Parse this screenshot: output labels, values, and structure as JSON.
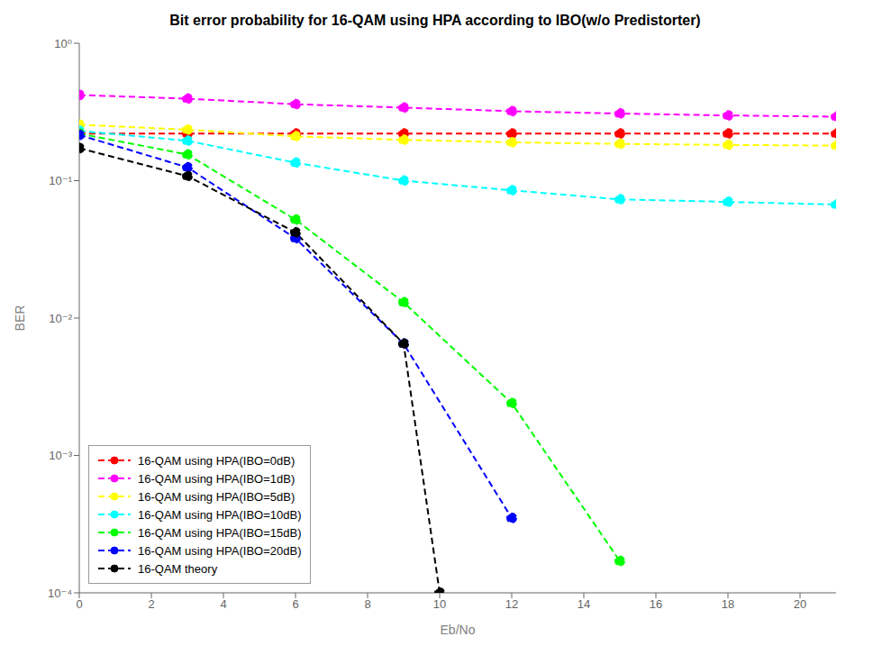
{
  "chart_data": {
    "type": "line",
    "title": "Bit error probability for 16-QAM using HPA according to IBO(w/o Predistorter)",
    "x_label": "Eb/No",
    "y_label": "BER",
    "log": "y",
    "grid": false,
    "legend": "lower left",
    "xlim": [
      0,
      21
    ],
    "ylim": [
      0.0001,
      1
    ],
    "xticks": [
      0,
      2,
      4,
      6,
      8,
      10,
      12,
      14,
      16,
      18,
      20
    ],
    "yticks": [
      {
        "value": 1,
        "label": "10⁰"
      },
      {
        "value": 0.1,
        "label": "10⁻¹"
      },
      {
        "value": 0.01,
        "label": "10⁻²"
      },
      {
        "value": 0.001,
        "label": "10⁻³"
      },
      {
        "value": 0.0001,
        "label": "10⁻⁴"
      }
    ],
    "series": [
      {
        "name": "16-QAM using HPA(IBO=0dB)",
        "color": "#ff0000",
        "marker": "circle",
        "line_style": "dashed",
        "x": [
          0,
          3,
          6,
          9,
          12,
          15,
          18,
          21
        ],
        "values": [
          0.22,
          0.22,
          0.22,
          0.22,
          0.22,
          0.22,
          0.22,
          0.22
        ]
      },
      {
        "name": "16-QAM using HPA(IBO=1dB)",
        "color": "#ff00ff",
        "marker": "circle",
        "line_style": "dashed",
        "x": [
          0,
          3,
          6,
          9,
          12,
          15,
          18,
          21
        ],
        "values": [
          0.42,
          0.395,
          0.36,
          0.34,
          0.32,
          0.308,
          0.298,
          0.292
        ]
      },
      {
        "name": "16-QAM using HPA(IBO=5dB)",
        "color": "#ffff00",
        "marker": "circle",
        "line_style": "dashed",
        "x": [
          0,
          3,
          6,
          9,
          12,
          15,
          18,
          21
        ],
        "values": [
          0.255,
          0.235,
          0.21,
          0.198,
          0.19,
          0.185,
          0.182,
          0.18
        ]
      },
      {
        "name": "16-QAM using HPA(IBO=10dB)",
        "color": "#00ffff",
        "marker": "circle",
        "line_style": "dashed",
        "x": [
          0,
          3,
          6,
          9,
          12,
          15,
          18,
          21
        ],
        "values": [
          0.23,
          0.195,
          0.135,
          0.1,
          0.085,
          0.073,
          0.07,
          0.067
        ]
      },
      {
        "name": "16-QAM using HPA(IBO=15dB)",
        "color": "#00ff00",
        "marker": "circle",
        "line_style": "dashed",
        "x": [
          0,
          3,
          6,
          9,
          12,
          15
        ],
        "values": [
          0.22,
          0.155,
          0.052,
          0.013,
          0.0024,
          0.00017
        ]
      },
      {
        "name": "16-QAM using HPA(IBO=20dB)",
        "color": "#0000ff",
        "marker": "circle",
        "line_style": "dashed",
        "x": [
          0,
          3,
          6,
          9,
          12
        ],
        "values": [
          0.215,
          0.125,
          0.038,
          0.0065,
          0.00035
        ]
      },
      {
        "name": "16-QAM theory",
        "color": "#000000",
        "marker": "circle",
        "line_style": "dashed",
        "x": [
          0,
          3,
          6,
          9,
          10
        ],
        "values": [
          0.172,
          0.108,
          0.042,
          0.0065,
          0.0001
        ]
      }
    ]
  }
}
